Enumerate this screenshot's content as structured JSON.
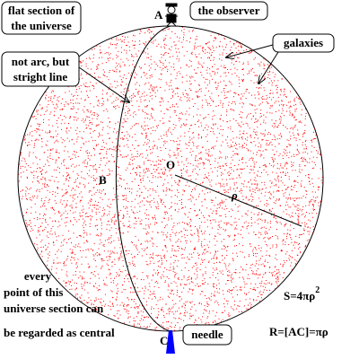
{
  "labels": {
    "flat_section": [
      "flat section of",
      "the universe"
    ],
    "point_a": "A",
    "observer": "the observer",
    "galaxies": "galaxies",
    "line_note": [
      "not arc, but",
      "stright line"
    ],
    "center": "O",
    "point_b": "B",
    "radius": "ρ",
    "central_note": [
      "every",
      "point of this",
      "universe section can",
      "be regarded as central"
    ],
    "area_formula": {
      "text": "S=4πρ",
      "exponent": "2"
    },
    "distance_formula": "R=[AC]=πρ",
    "point_c": "C",
    "needle": "needle"
  }
}
